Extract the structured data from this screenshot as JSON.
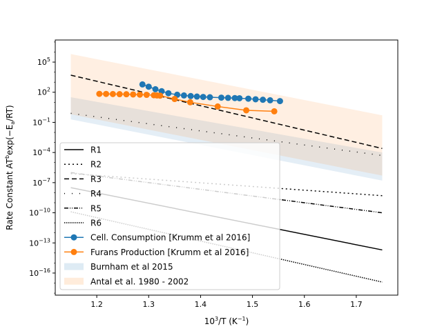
{
  "chart_data": {
    "type": "line",
    "title": "",
    "xlabel": "10³/T (K⁻¹)",
    "ylabel": "Rate Constant AT^b exp(−E_a/RT)",
    "xlabel_parts": {
      "base": "10",
      "sup": "3",
      "mid": "/T (K",
      "sup2": "−1",
      "end": ")"
    },
    "ylabel_parts": {
      "pre": "Rate Constant AT",
      "sup": "b",
      "mid": "exp(−E",
      "sub": "a",
      "end": "/RT)"
    },
    "xscale": "linear",
    "yscale": "log",
    "xlim": [
      1.12,
      1.78
    ],
    "ylim_log10": [
      -18.2,
      7.2
    ],
    "xticks": [
      1.2,
      1.3,
      1.4,
      1.5,
      1.6,
      1.7
    ],
    "xtick_labels": [
      "1.2",
      "1.3",
      "1.4",
      "1.5",
      "1.6",
      "1.7"
    ],
    "yticks_log10": [
      5,
      2,
      -1,
      -4,
      -7,
      -10,
      -13,
      -16
    ],
    "ytick_labels": [
      {
        "base": "10",
        "exp": "5"
      },
      {
        "base": "10",
        "exp": "2"
      },
      {
        "base": "10",
        "exp": "−1"
      },
      {
        "base": "10",
        "exp": "−4"
      },
      {
        "base": "10",
        "exp": "−7"
      },
      {
        "base": "10",
        "exp": "−10"
      },
      {
        "base": "10",
        "exp": "−13"
      },
      {
        "base": "10",
        "exp": "−16"
      }
    ],
    "grid": false,
    "legend_position": "lower-left",
    "series": [
      {
        "name": "R1",
        "kind": "line",
        "color": "#000000",
        "dash": "solid",
        "x": [
          1.15,
          1.75
        ],
        "y_log10": [
          -7.5,
          -13.7
        ]
      },
      {
        "name": "R2",
        "kind": "line",
        "color": "#000000",
        "dash": "2,4",
        "x": [
          1.15,
          1.75
        ],
        "y_log10": [
          -6.1,
          -8.3
        ]
      },
      {
        "name": "R3",
        "kind": "line",
        "color": "#000000",
        "dash": "7,4",
        "x": [
          1.15,
          1.75
        ],
        "y_log10": [
          3.7,
          -3.6
        ]
      },
      {
        "name": "R4",
        "kind": "line",
        "color": "#000000",
        "dash": "1,10",
        "x": [
          1.15,
          1.75
        ],
        "y_log10": [
          -0.1,
          -4.3
        ]
      },
      {
        "name": "R5",
        "kind": "line",
        "color": "#000000",
        "dash": "6,2,1,2,1,2",
        "x": [
          1.15,
          1.75
        ],
        "y_log10": [
          -6.0,
          -10.0
        ]
      },
      {
        "name": "R6",
        "kind": "line",
        "color": "#000000",
        "dash": "1.5,1.5",
        "x": [
          1.15,
          1.75
        ],
        "y_log10": [
          -9.9,
          -16.9
        ]
      },
      {
        "name": "Cell. Consumption [Krumm et al 2016]",
        "kind": "marker-line",
        "color": "#1f77b4",
        "x": [
          1.288,
          1.3,
          1.313,
          1.325,
          1.338,
          1.355,
          1.368,
          1.381,
          1.393,
          1.405,
          1.418,
          1.44,
          1.453,
          1.466,
          1.475,
          1.492,
          1.506,
          1.52,
          1.534,
          1.553
        ],
        "y_log10": [
          2.78,
          2.55,
          2.3,
          2.1,
          1.9,
          1.75,
          1.68,
          1.62,
          1.57,
          1.53,
          1.5,
          1.46,
          1.44,
          1.42,
          1.4,
          1.36,
          1.3,
          1.25,
          1.2,
          1.12
        ]
      },
      {
        "name": "Furans Production [Krumm et al 2016]",
        "kind": "marker-line",
        "color": "#ff7f0e",
        "x": [
          1.205,
          1.218,
          1.231,
          1.244,
          1.257,
          1.27,
          1.283,
          1.296,
          1.31,
          1.316,
          1.322,
          1.35,
          1.38,
          1.433,
          1.488,
          1.542
        ],
        "y_log10": [
          1.84,
          1.83,
          1.82,
          1.81,
          1.8,
          1.78,
          1.76,
          1.74,
          1.7,
          1.68,
          1.66,
          1.33,
          1.0,
          0.58,
          0.2,
          0.1
        ]
      }
    ],
    "bands": [
      {
        "name": "Burnham et al 2015",
        "color": "#1f77b4",
        "opacity": 0.12,
        "x": [
          1.15,
          1.75
        ],
        "upper_log10": [
          1.5,
          -4.0
        ],
        "lower_log10": [
          -0.7,
          -6.8
        ]
      },
      {
        "name": "Antal et al. 1980 - 2002",
        "color": "#ff7f0e",
        "opacity": 0.12,
        "x": [
          1.15,
          1.75
        ],
        "upper_log10": [
          5.8,
          -0.3
        ],
        "lower_log10": [
          -0.2,
          -6.3
        ]
      }
    ],
    "legend_items": [
      {
        "label": "R1",
        "kind": "line",
        "color": "#000000",
        "dash": "solid"
      },
      {
        "label": "R2",
        "kind": "line",
        "color": "#000000",
        "dash": "2,4"
      },
      {
        "label": "R3",
        "kind": "line",
        "color": "#000000",
        "dash": "7,4"
      },
      {
        "label": "R4",
        "kind": "line",
        "color": "#000000",
        "dash": "1,10"
      },
      {
        "label": "R5",
        "kind": "line",
        "color": "#000000",
        "dash": "6,2,1,2,1,2"
      },
      {
        "label": "R6",
        "kind": "line",
        "color": "#000000",
        "dash": "1.5,1.5"
      },
      {
        "label": "Cell. Consumption [Krumm et al 2016]",
        "kind": "marker",
        "color": "#1f77b4"
      },
      {
        "label": "Furans Production [Krumm et al 2016]",
        "kind": "marker",
        "color": "#ff7f0e"
      },
      {
        "label": "Burnham et al 2015",
        "kind": "patch",
        "color": "#1f77b4"
      },
      {
        "label": "Antal et al. 1980 - 2002",
        "kind": "patch",
        "color": "#ff7f0e"
      }
    ]
  }
}
